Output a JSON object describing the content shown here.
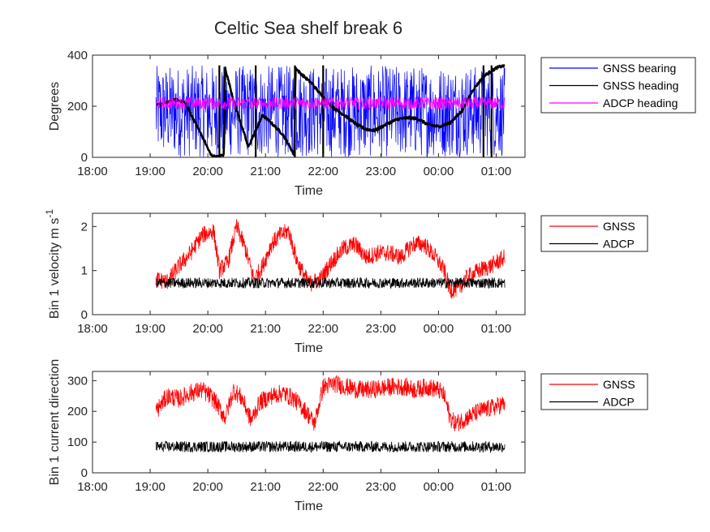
{
  "chart_data": [
    {
      "type": "line",
      "title": "Celtic Sea shelf break 6",
      "xlabel": "Time",
      "ylabel": "Degrees",
      "ylim": [
        0,
        400
      ],
      "yticks": [
        "0",
        "200",
        "400"
      ],
      "xticks": [
        "18:00",
        "19:00",
        "20:00",
        "21:00",
        "22:00",
        "23:00",
        "00:00",
        "01:00"
      ],
      "xlim_hours": [
        18.0,
        25.5
      ],
      "legend_position": "outside-right",
      "series": [
        {
          "name": "GNSS bearing",
          "color": "#0000ff",
          "style": "noise",
          "noise_range": [
            0,
            360
          ],
          "x_hours": [
            19.1,
            19.5,
            20.0,
            20.5,
            21.0,
            21.5,
            22.0,
            22.5,
            23.0,
            23.5,
            24.0,
            24.5,
            25.0,
            25.15
          ],
          "values": [
            180,
            180,
            180,
            180,
            180,
            180,
            180,
            180,
            180,
            180,
            180,
            180,
            180,
            180
          ]
        },
        {
          "name": "GNSS heading",
          "color": "#000000",
          "style": "line",
          "x_hours": [
            19.12,
            19.3,
            19.45,
            19.6,
            19.75,
            19.95,
            20.05,
            20.15,
            20.28,
            20.3,
            20.45,
            20.62,
            20.7,
            20.8,
            20.95,
            21.1,
            21.3,
            21.5,
            21.52,
            21.6,
            21.8,
            22.0,
            22.2,
            22.4,
            22.6,
            22.75,
            22.9,
            23.1,
            23.3,
            23.5,
            23.65,
            23.8,
            24.0,
            24.2,
            24.4,
            24.6,
            24.8,
            25.0,
            25.15
          ],
          "values": [
            205,
            215,
            225,
            215,
            150,
            60,
            10,
            0,
            10,
            350,
            220,
            100,
            40,
            90,
            165,
            135,
            90,
            10,
            350,
            330,
            290,
            235,
            190,
            160,
            125,
            110,
            105,
            130,
            150,
            155,
            150,
            130,
            120,
            135,
            180,
            265,
            320,
            350,
            360
          ]
        },
        {
          "name": "ADCP heading",
          "color": "#ff00ff",
          "style": "band",
          "noise_range": [
            185,
            240
          ],
          "x_hours": [
            19.1,
            25.15
          ],
          "values": [
            212,
            212
          ]
        }
      ]
    },
    {
      "type": "line",
      "xlabel": "Time",
      "ylabel": "Bin 1 velocity m s",
      "ylabel_superscript": "-1",
      "ylim": [
        0,
        2.3
      ],
      "yticks": [
        "0",
        "1",
        "2"
      ],
      "xticks": [
        "18:00",
        "19:00",
        "20:00",
        "21:00",
        "22:00",
        "23:00",
        "00:00",
        "01:00"
      ],
      "xlim_hours": [
        18.0,
        25.5
      ],
      "legend_position": "outside-right",
      "series": [
        {
          "name": "GNSS",
          "color": "#ff0000",
          "style": "noisy",
          "noise_amp": 0.2,
          "x_hours": [
            19.1,
            19.3,
            19.5,
            19.7,
            19.9,
            20.1,
            20.2,
            20.35,
            20.5,
            20.65,
            20.8,
            20.95,
            21.1,
            21.25,
            21.4,
            21.55,
            21.75,
            21.95,
            22.15,
            22.35,
            22.55,
            22.75,
            22.95,
            23.15,
            23.35,
            23.55,
            23.75,
            23.95,
            24.1,
            24.2,
            24.35,
            24.5,
            24.7,
            24.9,
            25.15
          ],
          "values": [
            0.8,
            0.75,
            1.1,
            1.4,
            1.8,
            1.9,
            1.0,
            1.2,
            2.0,
            1.5,
            0.8,
            1.1,
            1.6,
            1.8,
            1.9,
            1.2,
            0.7,
            0.8,
            1.2,
            1.5,
            1.6,
            1.3,
            1.4,
            1.4,
            1.3,
            1.6,
            1.6,
            1.3,
            1.0,
            0.55,
            0.6,
            0.85,
            1.0,
            1.1,
            1.3
          ]
        },
        {
          "name": "ADCP",
          "color": "#000000",
          "style": "noisy",
          "noise_amp": 0.12,
          "x_hours": [
            19.1,
            25.15
          ],
          "values": [
            0.72,
            0.72
          ]
        }
      ]
    },
    {
      "type": "line",
      "xlabel": "Time",
      "ylabel": "Bin 1 current direction",
      "ylim": [
        0,
        330
      ],
      "yticks": [
        "0",
        "100",
        "200",
        "300"
      ],
      "xticks": [
        "18:00",
        "19:00",
        "20:00",
        "21:00",
        "22:00",
        "23:00",
        "00:00",
        "01:00"
      ],
      "xlim_hours": [
        18.0,
        25.5
      ],
      "legend_position": "outside-right",
      "series": [
        {
          "name": "GNSS",
          "color": "#ff0000",
          "style": "noisy",
          "noise_amp": 30,
          "x_hours": [
            19.1,
            19.3,
            19.5,
            19.7,
            19.9,
            20.1,
            20.3,
            20.45,
            20.6,
            20.75,
            20.9,
            21.1,
            21.3,
            21.5,
            21.7,
            21.85,
            22.0,
            22.2,
            22.4,
            22.6,
            22.8,
            23.0,
            23.2,
            23.4,
            23.6,
            23.8,
            24.0,
            24.1,
            24.2,
            24.3,
            24.5,
            24.7,
            24.9,
            25.15
          ],
          "values": [
            200,
            250,
            240,
            260,
            270,
            240,
            180,
            270,
            240,
            170,
            230,
            250,
            260,
            240,
            200,
            160,
            280,
            290,
            280,
            270,
            270,
            275,
            280,
            280,
            270,
            280,
            270,
            250,
            180,
            160,
            180,
            200,
            210,
            225
          ]
        },
        {
          "name": "ADCP",
          "color": "#000000",
          "style": "noisy",
          "noise_amp": 18,
          "x_hours": [
            19.1,
            25.15
          ],
          "values": [
            85,
            85
          ]
        }
      ]
    }
  ]
}
